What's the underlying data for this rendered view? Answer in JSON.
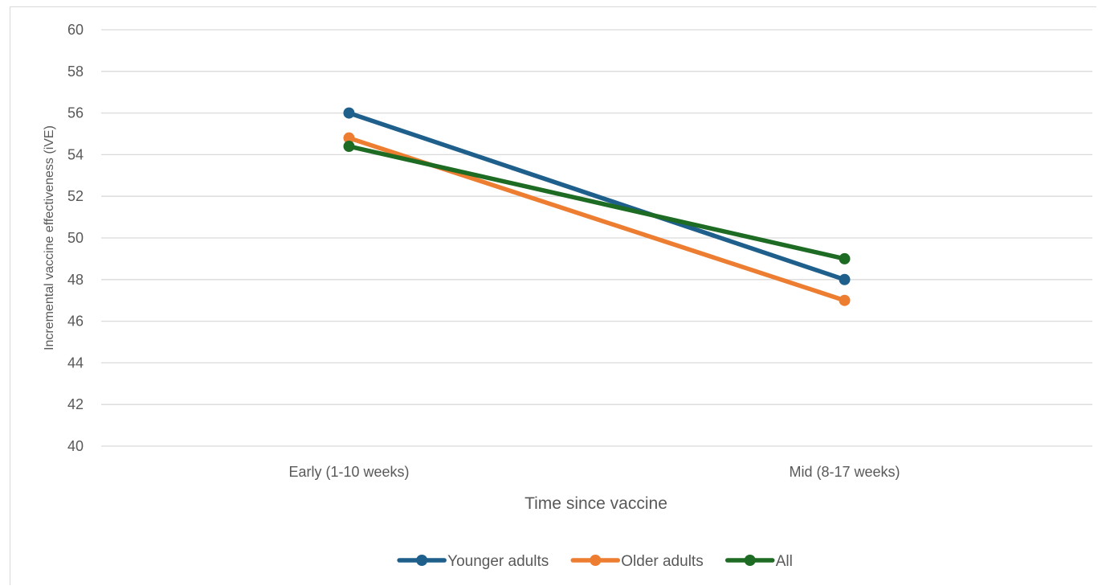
{
  "chart_data": {
    "type": "line",
    "title": "",
    "xlabel": "Time since vaccine",
    "ylabel": "Incremental vaccine effectiveness (iVE)",
    "categories": [
      "Early (1-10 weeks)",
      "Mid (8-17 weeks)"
    ],
    "ylim": [
      40,
      60
    ],
    "ytick_step": 2,
    "grid": "horizontal",
    "legend_position": "bottom",
    "series": [
      {
        "name": "Younger adults",
        "color": "#1f5f8b",
        "values": [
          56,
          48
        ]
      },
      {
        "name": "Older adults",
        "color": "#ed7d31",
        "values": [
          54.8,
          47
        ]
      },
      {
        "name": "All",
        "color": "#1e6b24",
        "values": [
          54.4,
          49
        ]
      }
    ]
  }
}
